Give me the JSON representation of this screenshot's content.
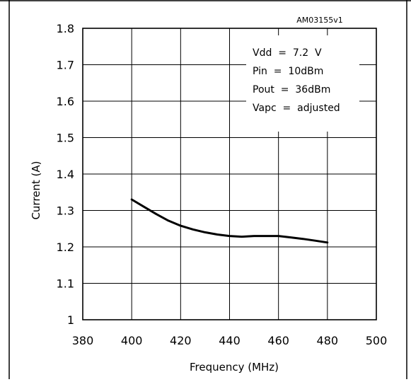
{
  "chart_data": {
    "type": "line",
    "id_label": "AM03155v1",
    "xlabel": "Frequency (MHz)",
    "ylabel": "Current (A)",
    "xlim": [
      380,
      500
    ],
    "ylim": [
      1.0,
      1.8
    ],
    "x_ticks": [
      "380",
      "400",
      "420",
      "440",
      "460",
      "480",
      "500"
    ],
    "y_ticks": [
      "1",
      "1.1",
      "1.2",
      "1.3",
      "1.4",
      "1.5",
      "1.6",
      "1.7",
      "1.8"
    ],
    "grid": true,
    "conditions": [
      "Vdd  =  7.2  V",
      "Pin  =  10dBm",
      "Pout  =  36dBm",
      "Vapc  =  adjusted"
    ],
    "series": [
      {
        "x": [
          400,
          405,
          410,
          415,
          420,
          425,
          430,
          435,
          440,
          445,
          450,
          455,
          460,
          465,
          470,
          475,
          480
        ],
        "values": [
          1.33,
          1.31,
          1.29,
          1.272,
          1.258,
          1.248,
          1.24,
          1.234,
          1.23,
          1.228,
          1.23,
          1.23,
          1.23,
          1.226,
          1.222,
          1.217,
          1.212
        ]
      }
    ]
  }
}
